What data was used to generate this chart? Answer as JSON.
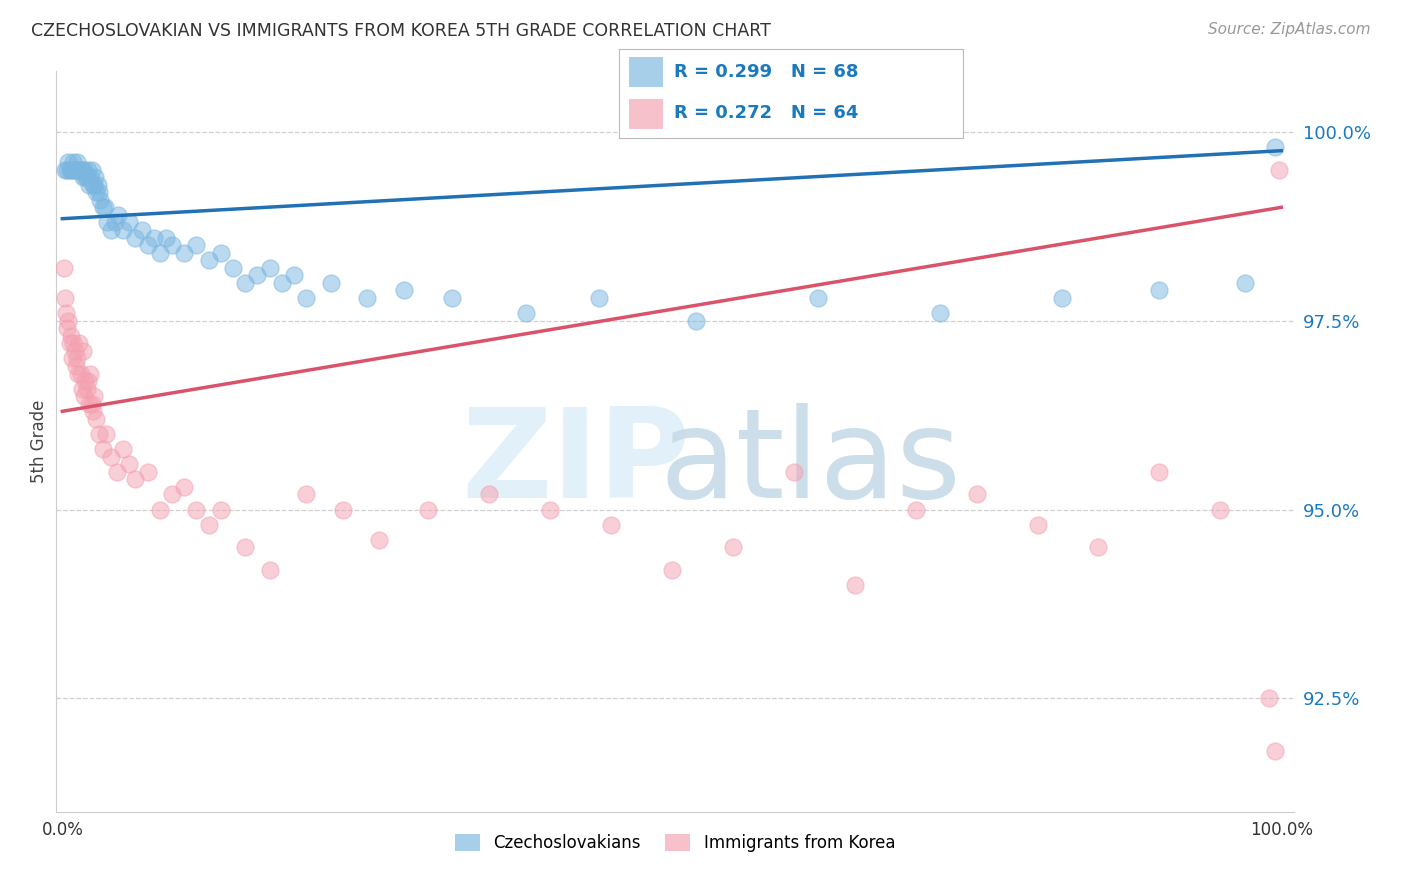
{
  "title": "CZECHOSLOVAKIAN VS IMMIGRANTS FROM KOREA 5TH GRADE CORRELATION CHART",
  "source": "Source: ZipAtlas.com",
  "ylabel": "5th Grade",
  "y_min": 91.0,
  "y_max": 100.8,
  "x_min": -0.5,
  "x_max": 101.0,
  "blue_color": "#7ab6e0",
  "blue_line_color": "#2171b5",
  "pink_color": "#f4a0b0",
  "pink_line_color": "#d9546a",
  "r_blue": 0.299,
  "n_blue": 68,
  "r_pink": 0.272,
  "n_pink": 64,
  "legend_r_color": "#1a7abf",
  "background_color": "#ffffff",
  "grid_color": "#d0d0d0",
  "blue_scatter_x": [
    0.2,
    0.4,
    0.5,
    0.6,
    0.7,
    0.8,
    0.9,
    1.0,
    1.1,
    1.2,
    1.3,
    1.4,
    1.5,
    1.6,
    1.7,
    1.8,
    1.9,
    2.0,
    2.1,
    2.2,
    2.3,
    2.4,
    2.5,
    2.6,
    2.7,
    2.8,
    2.9,
    3.0,
    3.1,
    3.3,
    3.5,
    3.7,
    4.0,
    4.3,
    4.6,
    5.0,
    5.5,
    6.0,
    6.5,
    7.0,
    7.5,
    8.0,
    8.5,
    9.0,
    10.0,
    11.0,
    12.0,
    13.0,
    14.0,
    15.0,
    16.0,
    17.0,
    18.0,
    19.0,
    20.0,
    22.0,
    25.0,
    28.0,
    32.0,
    38.0,
    44.0,
    52.0,
    62.0,
    72.0,
    82.0,
    90.0,
    97.0,
    99.5
  ],
  "blue_scatter_y": [
    99.5,
    99.5,
    99.6,
    99.5,
    99.5,
    99.5,
    99.6,
    99.5,
    99.5,
    99.6,
    99.5,
    99.5,
    99.5,
    99.5,
    99.4,
    99.5,
    99.4,
    99.4,
    99.5,
    99.3,
    99.4,
    99.5,
    99.3,
    99.3,
    99.4,
    99.2,
    99.3,
    99.2,
    99.1,
    99.0,
    99.0,
    98.8,
    98.7,
    98.8,
    98.9,
    98.7,
    98.8,
    98.6,
    98.7,
    98.5,
    98.6,
    98.4,
    98.6,
    98.5,
    98.4,
    98.5,
    98.3,
    98.4,
    98.2,
    98.0,
    98.1,
    98.2,
    98.0,
    98.1,
    97.8,
    98.0,
    97.8,
    97.9,
    97.8,
    97.6,
    97.8,
    97.5,
    97.8,
    97.6,
    97.8,
    97.9,
    98.0,
    99.8
  ],
  "pink_scatter_x": [
    0.1,
    0.2,
    0.3,
    0.4,
    0.5,
    0.6,
    0.7,
    0.8,
    0.9,
    1.0,
    1.1,
    1.2,
    1.3,
    1.4,
    1.5,
    1.6,
    1.7,
    1.8,
    1.9,
    2.0,
    2.1,
    2.2,
    2.3,
    2.4,
    2.5,
    2.6,
    2.8,
    3.0,
    3.3,
    3.6,
    4.0,
    4.5,
    5.0,
    5.5,
    6.0,
    7.0,
    8.0,
    9.0,
    10.0,
    11.0,
    12.0,
    13.0,
    15.0,
    17.0,
    20.0,
    23.0,
    26.0,
    30.0,
    35.0,
    40.0,
    45.0,
    50.0,
    55.0,
    60.0,
    65.0,
    70.0,
    75.0,
    80.0,
    85.0,
    90.0,
    95.0,
    99.0,
    99.5,
    99.8
  ],
  "pink_scatter_y": [
    98.2,
    97.8,
    97.6,
    97.4,
    97.5,
    97.2,
    97.3,
    97.0,
    97.2,
    97.1,
    96.9,
    97.0,
    96.8,
    97.2,
    96.8,
    96.6,
    97.1,
    96.5,
    96.7,
    96.6,
    96.7,
    96.4,
    96.8,
    96.4,
    96.3,
    96.5,
    96.2,
    96.0,
    95.8,
    96.0,
    95.7,
    95.5,
    95.8,
    95.6,
    95.4,
    95.5,
    95.0,
    95.2,
    95.3,
    95.0,
    94.8,
    95.0,
    94.5,
    94.2,
    95.2,
    95.0,
    94.6,
    95.0,
    95.2,
    95.0,
    94.8,
    94.2,
    94.5,
    95.5,
    94.0,
    95.0,
    95.2,
    94.8,
    94.5,
    95.5,
    95.0,
    92.5,
    91.8,
    99.5
  ]
}
